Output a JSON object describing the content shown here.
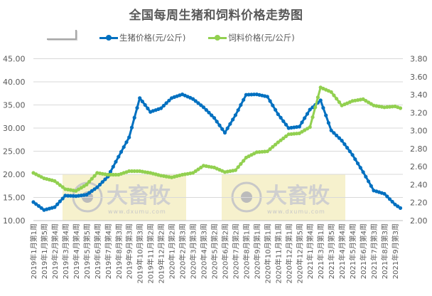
{
  "title": "全国每周生猪和饲料价格走势图",
  "legend": {
    "pig": "生猪价格(元/公斤)",
    "feed": "饲料价格(元/公斤)"
  },
  "colors": {
    "pig": "#0070C0",
    "feed": "#92D050",
    "grid": "#d9d9d9",
    "watermark_bg": "#f5efc4",
    "text": "#595959"
  },
  "watermark": {
    "brand": "大畜牧",
    "url": "www.dxumu.com"
  },
  "chart_data": {
    "type": "line",
    "title": "全国每周生猪和饲料价格走势图",
    "xlabel": "",
    "ylabel_left": "生猪价格(元/公斤)",
    "ylabel_right": "饲料价格(元/公斤)",
    "ylim_left": [
      10,
      45
    ],
    "yticks_left": [
      "10.00",
      "15.00",
      "20.00",
      "25.00",
      "30.00",
      "35.00",
      "40.00",
      "45.00"
    ],
    "ylim_right": [
      2.0,
      3.8
    ],
    "yticks_right": [
      "2.00",
      "2.20",
      "2.40",
      "2.60",
      "2.80",
      "3.00",
      "3.20",
      "3.40",
      "3.60",
      "3.80"
    ],
    "grid": true,
    "legend_position": "top",
    "categories": [
      "2019年1月第1周",
      "2019年1月第5周",
      "2019年2月第4周",
      "2019年3月第4周",
      "2019年4月第4周",
      "2019年5月第5周",
      "2019年6月第4周",
      "2019年7月第4周",
      "2019年8月第3周",
      "2019年9月第3周",
      "2019年10月第3周",
      "2019年11月第2周",
      "2019年12月第2周",
      "2020年1月第2周",
      "2020年2月第3周",
      "2020年3月第3周",
      "2020年4月第3周",
      "2020年5月第2周",
      "2020年6月第2周",
      "2020年7月第2周",
      "2020年8月第1周",
      "2020年9月第1周",
      "2020年10月第1周",
      "2020年11月第1周",
      "2020年12月第1周",
      "2020年12月第5周",
      "2021年1月第4周",
      "2021年3月第1周",
      "2021年3月第5周",
      "2021年4月第4周",
      "2021年5月第4周",
      "2021年6月第4周",
      "2021年7月第3周",
      "2021年8月第3周",
      "2021年9月第3周"
    ],
    "series": [
      {
        "name": "生猪价格(元/公斤)",
        "axis": "left",
        "values": [
          14.0,
          12.3,
          12.9,
          15.4,
          15.3,
          15.6,
          17.2,
          19.5,
          23.8,
          28.0,
          36.5,
          33.5,
          34.3,
          36.5,
          37.3,
          36.3,
          34.5,
          32.2,
          29.0,
          32.8,
          37.2,
          37.3,
          36.8,
          33.0,
          30.0,
          30.3,
          34.0,
          36.0,
          29.5,
          27.3,
          24.2,
          20.5,
          16.5,
          15.8,
          13.5
        ]
      },
      {
        "name": "饲料价格(元/公斤)",
        "axis": "right",
        "values": [
          2.53,
          2.47,
          2.44,
          2.35,
          2.33,
          2.4,
          2.53,
          2.51,
          2.51,
          2.55,
          2.55,
          2.53,
          2.5,
          2.48,
          2.51,
          2.53,
          2.61,
          2.59,
          2.54,
          2.56,
          2.7,
          2.76,
          2.77,
          2.87,
          2.96,
          2.97,
          3.04,
          3.48,
          3.43,
          3.28,
          3.33,
          3.35,
          3.28,
          3.26,
          3.27
        ]
      }
    ]
  }
}
